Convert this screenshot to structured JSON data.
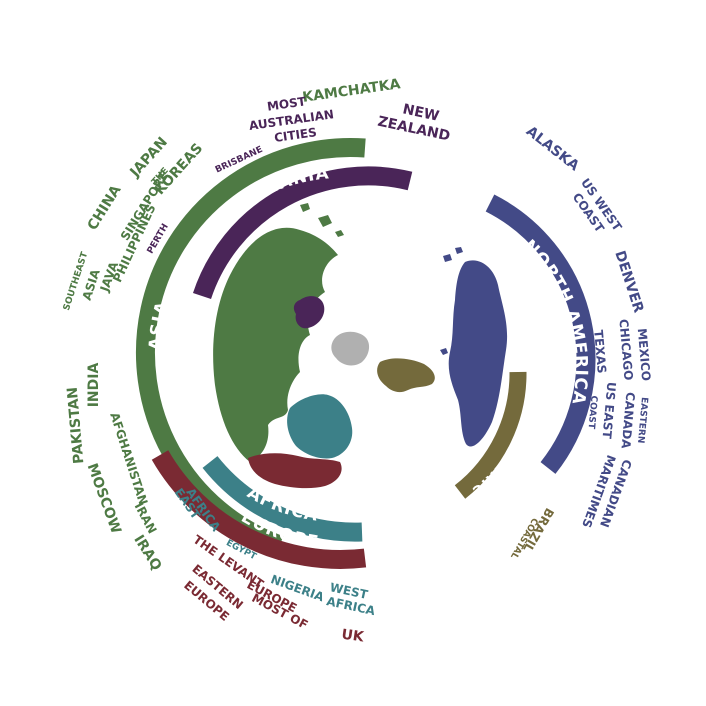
{
  "colors": {
    "asia": "#4e7a44",
    "oceania": "#4a2558",
    "africa": "#3c8088",
    "europe": "#7a2a33",
    "north_america": "#434a87",
    "south_america": "#746a3c",
    "antarctica": "#b0b0b0"
  },
  "bands": {
    "asia": "ASIA",
    "oceania": "OCEANIA",
    "africa": "AFRICA",
    "europe": "EUROPE",
    "north_america": "NORTH AMERICA",
    "south_america": "SOUTH AMERICA"
  },
  "places": {
    "kamchatka": "KAMCHATKA",
    "most": "MOST",
    "australian": "AUSTRALIAN",
    "cities": "CITIES",
    "new": "NEW",
    "zealand": "ZEALAND",
    "brisbane": "BRISBANE",
    "japan": "JAPAN",
    "the": "THE",
    "koreas": "KOREAS",
    "china": "CHINA",
    "singapore": "SINGAPORE",
    "perth": "PERTH",
    "philippines": "PHILIPPINES",
    "java": "JAVA",
    "southeast": "SOUTHEAST",
    "asia_label": "ASIA",
    "india": "INDIA",
    "pakistan": "PAKISTAN",
    "afghanistan": "AFGHANISTAN",
    "moscow": "MOSCOW",
    "iran": "IRAN",
    "iraq": "IRAQ",
    "east": "EAST",
    "africa_label": "AFRICA",
    "egypt": "EGYPT",
    "the_levant": "THE LEVANT",
    "eastern": "EASTERN",
    "europe_label": "EUROPE",
    "most_of": "MOST OF",
    "europe2": "EUROPE",
    "nigeria": "NIGERIA",
    "west": "WEST",
    "africa2": "AFRICA",
    "uk": "UK",
    "alaska": "ALASKA",
    "us_west": "US WEST",
    "coast": "COAST",
    "denver": "DENVER",
    "mexico": "MEXICO",
    "chicago": "CHICAGO",
    "texas": "TEXAS",
    "eastern_na": "EASTERN",
    "canada": "CANADA",
    "us_east": "US EAST",
    "coast_e": "COAST",
    "canadian": "CANADIAN",
    "maritimes": "MARITIMES",
    "coastal": "COASTAL",
    "brazil": "BRAZIL"
  }
}
